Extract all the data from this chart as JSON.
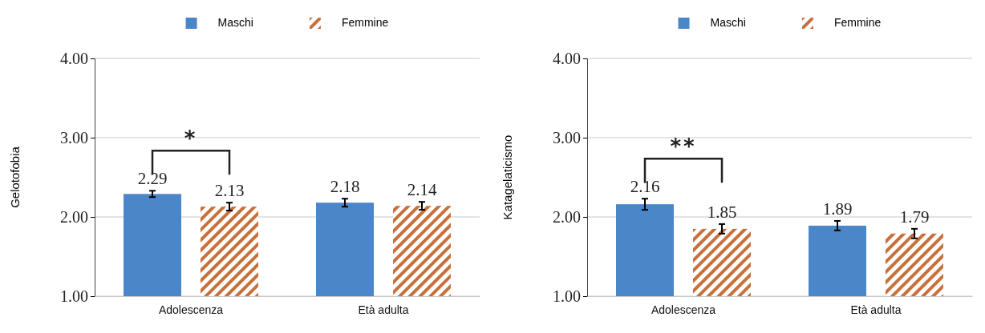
{
  "chart_data": [
    {
      "type": "bar",
      "ylabel": "Gelotofobia",
      "categories": [
        "Adolescenza",
        "Età adulta"
      ],
      "ylim": [
        1,
        4
      ],
      "yticks": [
        {
          "value": 1,
          "label": "1.00"
        },
        {
          "value": 2,
          "label": "2.00"
        },
        {
          "value": 3,
          "label": "3.00"
        },
        {
          "value": 4,
          "label": "4.00"
        }
      ],
      "grid": "y",
      "legend": "top",
      "data_labels": true,
      "annotations": [
        "*"
      ],
      "series": [
        {
          "name": "Maschi",
          "color": "#4a86c8",
          "values": [
            2.29,
            2.18
          ],
          "errors": [
            0.04,
            0.05
          ]
        },
        {
          "name": "Femmine",
          "color": "#c8703a",
          "values": [
            2.13,
            2.14
          ],
          "errors": [
            0.05,
            0.05
          ]
        }
      ]
    },
    {
      "type": "bar",
      "ylabel": "Katagelaticismo",
      "categories": [
        "Adolescenza",
        "Età adulta"
      ],
      "ylim": [
        1,
        4
      ],
      "yticks": [
        {
          "value": 1,
          "label": "1.00"
        },
        {
          "value": 2,
          "label": "2.00"
        },
        {
          "value": 3,
          "label": "3.00"
        },
        {
          "value": 4,
          "label": "4.00"
        }
      ],
      "grid": "y",
      "legend": "top",
      "data_labels": true,
      "annotations": [
        "**"
      ],
      "series": [
        {
          "name": "Maschi",
          "color": "#4a86c8",
          "values": [
            2.16,
            1.89
          ],
          "errors": [
            0.07,
            0.06
          ]
        },
        {
          "name": "Femmine",
          "color": "#c8703a",
          "values": [
            1.85,
            1.79
          ],
          "errors": [
            0.06,
            0.06
          ]
        }
      ]
    }
  ]
}
